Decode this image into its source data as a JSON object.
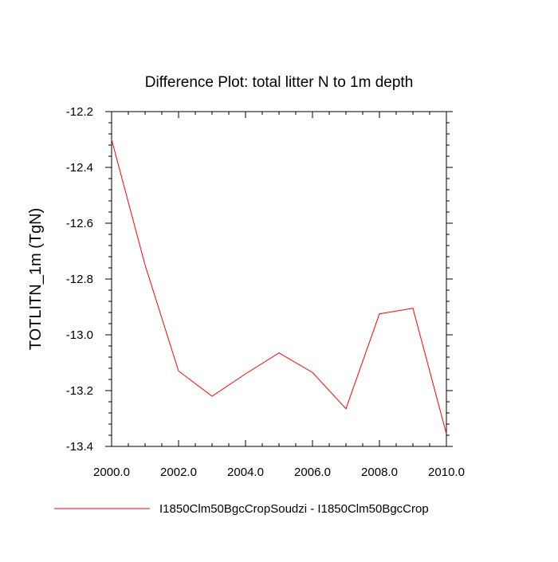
{
  "chart_data": {
    "type": "line",
    "title": "Difference Plot: total litter N to 1m depth",
    "xlabel": "",
    "ylabel": "TOTLITN_1m  (TgN)",
    "x": [
      2000,
      2001,
      2002,
      2003,
      2004,
      2005,
      2006,
      2007,
      2008,
      2009,
      2010
    ],
    "series": [
      {
        "name": "I1850Clm50BgcCropSoudzi - I1850Clm50BgcCrop",
        "color": "#ff0000",
        "values": [
          -12.3,
          -12.75,
          -13.13,
          -13.22,
          -13.14,
          -13.065,
          -13.135,
          -13.265,
          -12.925,
          -12.905,
          -13.355
        ]
      }
    ],
    "xlim": [
      2000,
      2010
    ],
    "ylim": [
      -13.4,
      -12.2
    ],
    "xticks": [
      2000,
      2002,
      2004,
      2006,
      2008,
      2010
    ],
    "xtick_labels": [
      "2000.0",
      "2002.0",
      "2004.0",
      "2006.0",
      "2008.0",
      "2010.0"
    ],
    "yticks": [
      -12.2,
      -12.4,
      -12.6,
      -12.8,
      -13.0,
      -13.2,
      -13.4
    ],
    "ytick_labels": [
      "-12.2",
      "-12.4",
      "-12.6",
      "-12.8",
      "-13.0",
      "-13.2",
      "-13.4"
    ],
    "grid": false,
    "legend_position": "bottom"
  }
}
